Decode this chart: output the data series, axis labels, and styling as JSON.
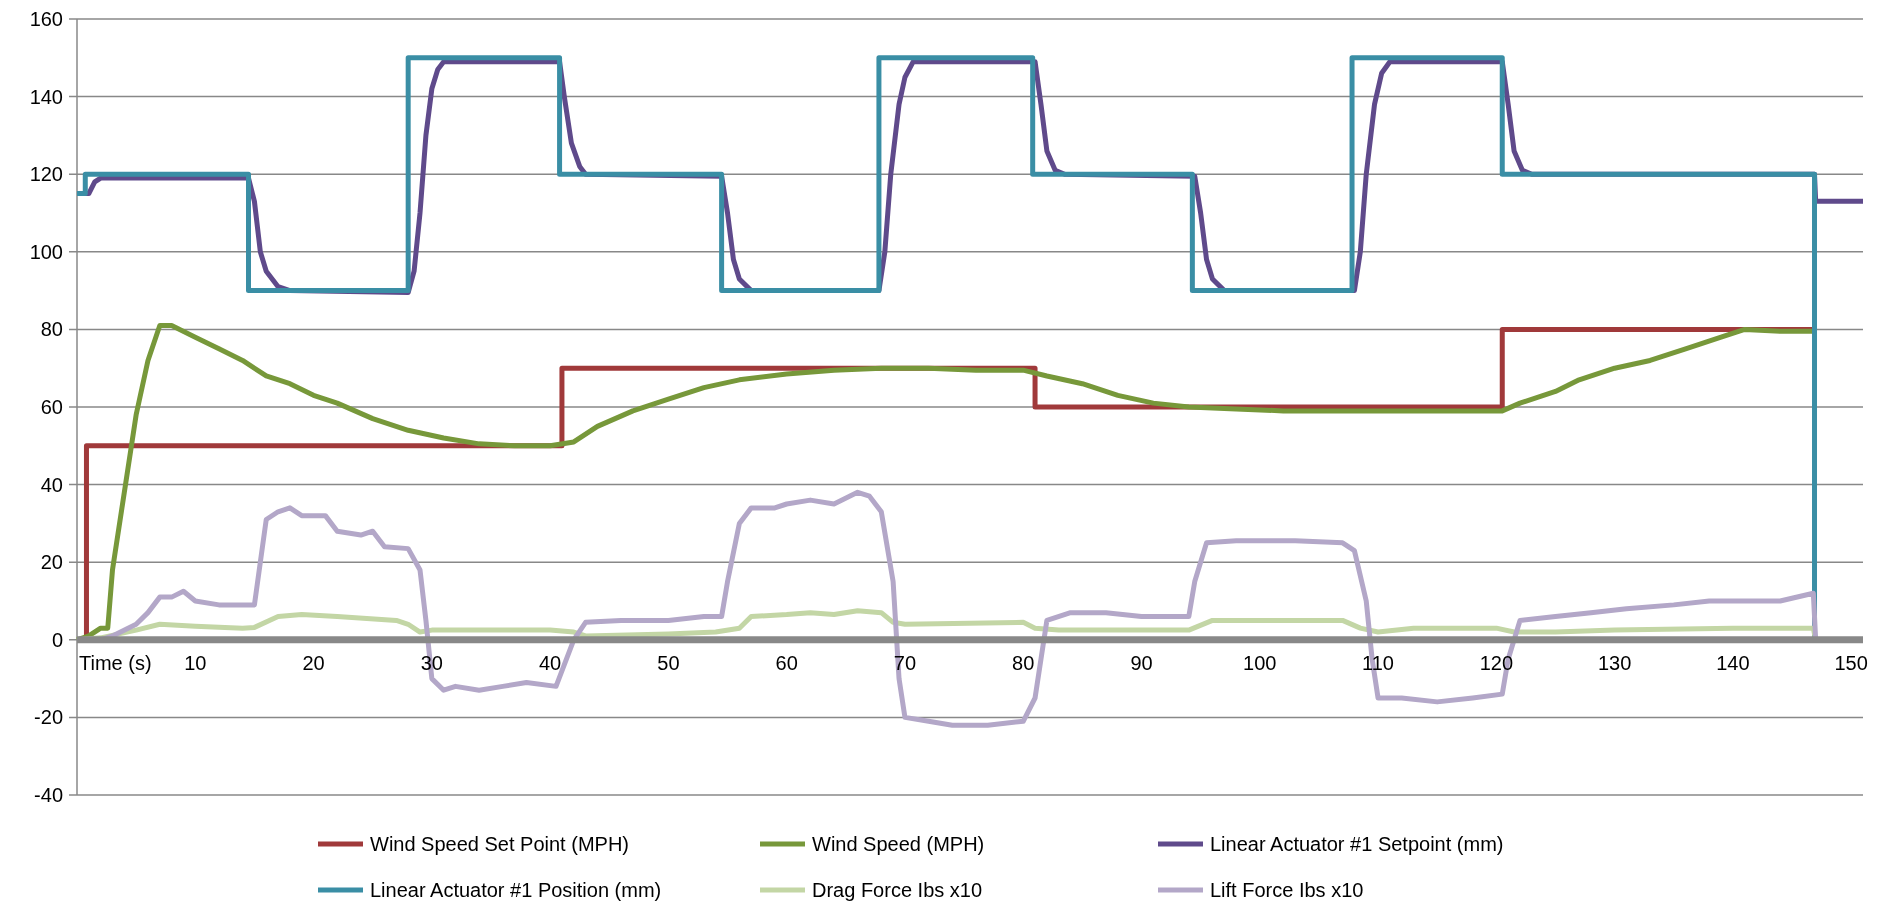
{
  "chart_data": {
    "type": "line",
    "xlabel": "Time (s)",
    "xlim": [
      0,
      151
    ],
    "xticks": [
      10,
      20,
      30,
      40,
      50,
      60,
      70,
      80,
      90,
      100,
      110,
      120,
      130,
      140,
      150
    ],
    "ylim": [
      -40,
      160
    ],
    "yticks": [
      -40,
      -20,
      0,
      20,
      40,
      60,
      80,
      100,
      120,
      140,
      160
    ],
    "grid": "y",
    "legend": "bottom",
    "series": [
      {
        "name": "Wind Speed Set Point (MPH)",
        "color": "#a0393a",
        "x": [
          0,
          0.8,
          0.8,
          41,
          41,
          81,
          81,
          120.5,
          120.5,
          146.9,
          146.9,
          151
        ],
        "values": [
          0,
          0,
          50,
          50,
          70,
          70,
          60,
          60,
          80,
          80,
          0,
          0
        ]
      },
      {
        "name": "Wind Speed (MPH)",
        "color": "#77983a",
        "x": [
          0,
          1,
          2,
          2.6,
          3,
          4,
          5,
          6,
          7,
          8,
          10,
          12,
          14,
          16,
          18,
          20,
          22,
          25,
          28,
          31,
          34,
          37,
          40,
          42,
          44,
          47,
          50,
          53,
          56,
          60,
          64,
          68,
          72,
          76,
          80,
          82,
          85,
          88,
          91,
          94,
          98,
          102,
          106,
          110,
          114,
          118,
          120.5,
          122,
          125,
          127,
          130,
          133,
          136,
          139,
          141,
          144,
          146.8
        ],
        "values": [
          0,
          1,
          3,
          3,
          18,
          38,
          58,
          72,
          81,
          81,
          78,
          75,
          72,
          68,
          66,
          63,
          61,
          57,
          54,
          52,
          50.5,
          50,
          50,
          51,
          55,
          59,
          62,
          65,
          67,
          68.5,
          69.5,
          70,
          70,
          69.5,
          69.5,
          68,
          66,
          63,
          61,
          60,
          59.5,
          59,
          59,
          59,
          59,
          59,
          59,
          61,
          64,
          67,
          70,
          72,
          75,
          78,
          80,
          79.5,
          79.5
        ]
      },
      {
        "name": "Linear Actuator #1 Setpoint (mm)",
        "color": "#5f4a8b",
        "x": [
          0,
          1,
          1.5,
          2,
          14.5,
          15,
          15.5,
          16,
          17,
          18,
          28,
          28.5,
          29,
          29.5,
          30,
          30.5,
          31,
          40.8,
          41.2,
          41.8,
          42.5,
          43,
          54.5,
          55,
          55.5,
          56,
          57,
          67.8,
          68.3,
          68.8,
          69.5,
          70,
          70.7,
          81,
          81.5,
          82,
          82.7,
          83.5,
          94.5,
          95,
          95.5,
          96,
          97,
          108,
          108.5,
          109,
          109.7,
          110.3,
          111,
          120.5,
          121,
          121.5,
          122.2,
          123,
          146.9,
          147,
          151
        ],
        "values": [
          115,
          115,
          118,
          119,
          119,
          113,
          100,
          95,
          91,
          90,
          89.5,
          95,
          110,
          130,
          142,
          147,
          149,
          149,
          140,
          128,
          122,
          120,
          119.5,
          110,
          98,
          93,
          90,
          90,
          100,
          120,
          138,
          145,
          149,
          149,
          138,
          126,
          121,
          120,
          119.5,
          110,
          98,
          93,
          90,
          90,
          100,
          120,
          138,
          146,
          149,
          149,
          138,
          126,
          121,
          120,
          120,
          113,
          113
        ]
      },
      {
        "name": "Linear Actuator #1 Position (mm)",
        "color": "#3a8ea5",
        "x": [
          0,
          0.7,
          0.7,
          14.5,
          14.5,
          28,
          28,
          40.8,
          40.8,
          54.5,
          54.5,
          67.8,
          67.8,
          80.8,
          80.8,
          94.3,
          94.3,
          107.8,
          107.8,
          120.5,
          120.5,
          146.9,
          146.9,
          151
        ],
        "values": [
          115,
          115,
          120,
          120,
          90,
          90,
          150,
          150,
          120,
          120,
          90,
          90,
          150,
          150,
          120,
          120,
          90,
          90,
          150,
          150,
          120,
          120,
          0,
          0
        ]
      },
      {
        "name": "Drag Force Ibs x10",
        "color": "#c3d6a5",
        "x": [
          0,
          2,
          5,
          7,
          10,
          14,
          15,
          17,
          19,
          22,
          27,
          28,
          29,
          30,
          40,
          42,
          43,
          50,
          54,
          56,
          57,
          60,
          62,
          64,
          66,
          68,
          69,
          70,
          80,
          81,
          83,
          94,
          96,
          100,
          107,
          108.5,
          110,
          113,
          120,
          121.5,
          125,
          130,
          140,
          146.8,
          147,
          151
        ],
        "values": [
          0,
          0.5,
          2.5,
          4,
          3.5,
          3,
          3.2,
          6,
          6.5,
          6,
          5,
          4,
          2,
          2.5,
          2.5,
          2,
          1,
          1.5,
          2,
          3,
          6,
          6.5,
          7,
          6.5,
          7.5,
          7,
          4.5,
          4,
          4.5,
          3,
          2.5,
          2.5,
          5,
          5,
          5,
          3,
          2,
          3,
          3,
          2,
          2,
          2.5,
          3,
          3,
          0,
          0
        ]
      },
      {
        "name": "Lift Force Ibs x10",
        "color": "#b3a7c8",
        "x": [
          0,
          2,
          3,
          5,
          6,
          7,
          8,
          9,
          10,
          12,
          14,
          15,
          15.5,
          16,
          17,
          18,
          19,
          21,
          22,
          24,
          25,
          26,
          28,
          29,
          29.5,
          30,
          31,
          32,
          34,
          36,
          38,
          40.5,
          41,
          42,
          43,
          46,
          50,
          53,
          54.5,
          55,
          56,
          57,
          59,
          60,
          62,
          64,
          66,
          67,
          68,
          69,
          69.5,
          70,
          72,
          74,
          77,
          80,
          81,
          81.5,
          82,
          84,
          87,
          90,
          94,
          94.5,
          95.5,
          98,
          103,
          107,
          108,
          109,
          109.5,
          110,
          112,
          115,
          118,
          120.5,
          121,
          122,
          125,
          128,
          131,
          135,
          138,
          141,
          144,
          146.8,
          147,
          151
        ],
        "values": [
          0,
          0,
          1,
          4,
          7,
          11,
          11,
          12.5,
          10,
          9,
          9,
          9,
          20,
          31,
          33,
          34,
          32,
          32,
          28,
          27,
          28,
          24,
          23.5,
          18,
          5,
          -10,
          -13,
          -12,
          -13,
          -12,
          -11,
          -12,
          -8,
          0,
          4.5,
          5,
          5,
          6,
          6,
          15,
          30,
          34,
          34,
          35,
          36,
          35,
          38,
          37,
          33,
          15,
          -10,
          -20,
          -21,
          -22,
          -22,
          -21,
          -15,
          -5,
          5,
          7,
          7,
          6,
          6,
          15,
          25,
          25.5,
          25.5,
          25,
          23,
          10,
          -5,
          -15,
          -15,
          -16,
          -15,
          -14,
          -5,
          5,
          6,
          7,
          8,
          9,
          10,
          10,
          10,
          12,
          0,
          0
        ]
      }
    ]
  }
}
